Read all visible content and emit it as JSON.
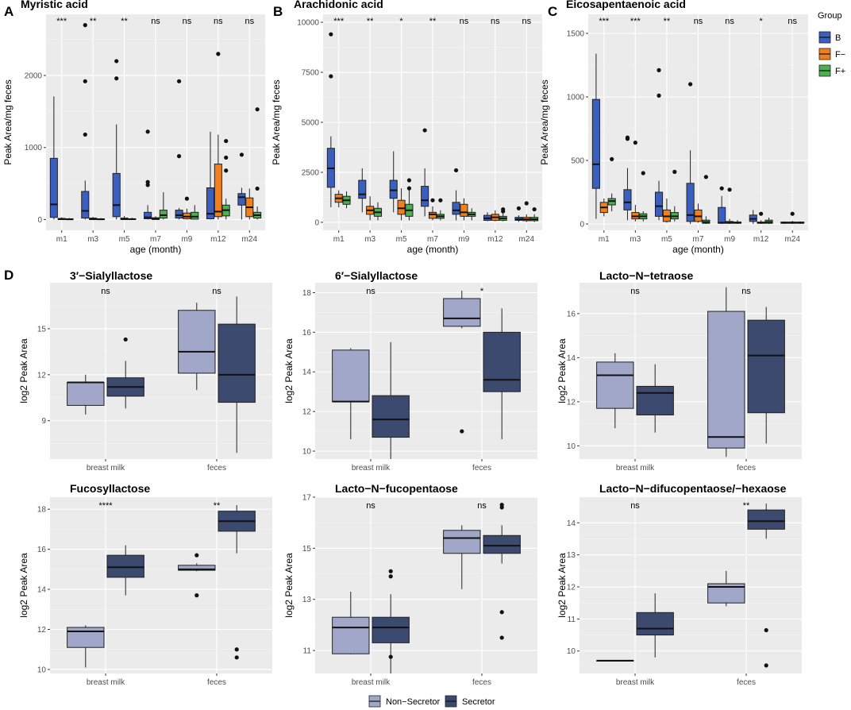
{
  "colors": {
    "panel_bg": "#ebebeb",
    "grid_major": "#ffffff",
    "B": "#3a5fbf",
    "F-": "#f07f1c",
    "F+": "#4caf50",
    "Non-Secretor": "#a0a7c8",
    "Secretor": "#3d4a70"
  },
  "legend_top": {
    "title": "Group",
    "items": [
      "B",
      "F−",
      "F+"
    ]
  },
  "legend_bottom": {
    "items": [
      "Non−Secretor",
      "Secretor"
    ]
  },
  "chart_data": [
    {
      "type": "boxplot",
      "panel": "A",
      "title": "Myristic acid",
      "xlabel": "age (month)",
      "ylabel": "Peak Area/mg feces",
      "ylim": [
        -150,
        2850
      ],
      "yticks": [
        0,
        1000,
        2000
      ],
      "categories": [
        "m1",
        "m3",
        "m5",
        "m7",
        "m9",
        "m12",
        "m24"
      ],
      "groups": [
        "B",
        "F-",
        "F+"
      ],
      "significance": [
        "***",
        "**",
        "**",
        "ns",
        "ns",
        "ns",
        "ns"
      ],
      "boxes": [
        [
          [
            0,
            30,
            210,
            850,
            1710,
            []
          ],
          [
            0,
            0,
            5,
            15,
            30,
            []
          ],
          [
            0,
            0,
            3,
            10,
            20,
            []
          ]
        ],
        [
          [
            0,
            20,
            120,
            390,
            540,
            [
              1180,
              1920,
              2700
            ]
          ],
          [
            0,
            0,
            5,
            20,
            35,
            []
          ],
          [
            0,
            0,
            3,
            10,
            20,
            []
          ]
        ],
        [
          [
            0,
            40,
            200,
            640,
            1320,
            [
              1960,
              2200
            ]
          ],
          [
            0,
            0,
            5,
            20,
            50,
            []
          ],
          [
            0,
            0,
            5,
            10,
            25,
            []
          ]
        ],
        [
          [
            0,
            10,
            30,
            100,
            200,
            [
              480,
              520,
              1220
            ]
          ],
          [
            0,
            0,
            10,
            25,
            45,
            []
          ],
          [
            0,
            20,
            60,
            130,
            380,
            []
          ]
        ],
        [
          [
            0,
            20,
            60,
            130,
            160,
            [
              880,
              1920
            ]
          ],
          [
            0,
            10,
            40,
            90,
            150,
            [
              290
            ]
          ],
          [
            0,
            5,
            40,
            100,
            200,
            []
          ]
        ],
        [
          [
            0,
            10,
            80,
            440,
            1220,
            []
          ],
          [
            0,
            40,
            110,
            770,
            1180,
            [
              2300
            ]
          ],
          [
            0,
            50,
            130,
            200,
            290,
            [
              680,
              860,
              1090
            ]
          ]
        ],
        [
          [
            0,
            200,
            310,
            360,
            440,
            [
              900
            ]
          ],
          [
            0,
            40,
            170,
            300,
            430,
            []
          ],
          [
            0,
            20,
            60,
            100,
            180,
            [
              430,
              1530
            ]
          ]
        ]
      ]
    },
    {
      "type": "boxplot",
      "panel": "B",
      "title": "Arachidonic acid",
      "xlabel": "age (month)",
      "ylabel": "Peak Area/mg feces",
      "ylim": [
        -400,
        10400
      ],
      "yticks": [
        0,
        2500,
        5000,
        7500,
        10000
      ],
      "categories": [
        "m1",
        "m3",
        "m5",
        "m7",
        "m9",
        "m12",
        "m24"
      ],
      "groups": [
        "B",
        "F-",
        "F+"
      ],
      "significance": [
        "***",
        "**",
        "*",
        "**",
        "ns",
        "ns",
        "ns"
      ],
      "boxes": [
        [
          [
            750,
            1750,
            2700,
            3700,
            4300,
            [
              7300,
              9400
            ]
          ],
          [
            750,
            1000,
            1200,
            1400,
            1600,
            []
          ],
          [
            700,
            900,
            1100,
            1300,
            1550,
            []
          ]
        ],
        [
          [
            500,
            1200,
            1400,
            2100,
            2700,
            []
          ],
          [
            100,
            400,
            600,
            800,
            1300,
            []
          ],
          [
            100,
            300,
            500,
            700,
            1000,
            []
          ]
        ],
        [
          [
            500,
            1200,
            1600,
            2100,
            3550,
            []
          ],
          [
            100,
            400,
            700,
            1100,
            1700,
            []
          ],
          [
            100,
            300,
            600,
            900,
            1600,
            [
              1700,
              2100
            ]
          ]
        ],
        [
          [
            300,
            800,
            1100,
            1800,
            2700,
            [
              4600
            ]
          ],
          [
            100,
            200,
            400,
            500,
            800,
            [
              1100
            ]
          ],
          [
            100,
            200,
            300,
            400,
            600,
            [
              1100
            ]
          ]
        ],
        [
          [
            100,
            400,
            600,
            1000,
            1600,
            [
              2600
            ]
          ],
          [
            100,
            300,
            500,
            900,
            1200,
            []
          ],
          [
            100,
            300,
            400,
            500,
            700,
            []
          ]
        ],
        [
          [
            50,
            100,
            200,
            350,
            500,
            []
          ],
          [
            50,
            100,
            250,
            400,
            600,
            []
          ],
          [
            50,
            100,
            200,
            300,
            450,
            [
              550,
              650
            ]
          ]
        ],
        [
          [
            20,
            100,
            150,
            250,
            350,
            [
              700
            ]
          ],
          [
            20,
            80,
            150,
            250,
            400,
            [
              950
            ]
          ],
          [
            20,
            80,
            150,
            250,
            400,
            [
              650
            ]
          ]
        ]
      ]
    },
    {
      "type": "boxplot",
      "panel": "C",
      "title": "Eicosapentaenoic acid",
      "xlabel": "age (month)",
      "ylabel": "Peak Area/mg feces",
      "ylim": [
        -50,
        1650
      ],
      "yticks": [
        0,
        500,
        1000,
        1500
      ],
      "categories": [
        "m1",
        "m3",
        "m5",
        "m7",
        "m9",
        "m12",
        "m24"
      ],
      "groups": [
        "B",
        "F-",
        "F+"
      ],
      "significance": [
        "***",
        "***",
        "**",
        "ns",
        "ns",
        "*",
        "ns"
      ],
      "boxes": [
        [
          [
            40,
            280,
            470,
            980,
            1340,
            []
          ],
          [
            60,
            90,
            130,
            170,
            200,
            []
          ],
          [
            100,
            150,
            180,
            200,
            240,
            [
              510
            ]
          ]
        ],
        [
          [
            30,
            110,
            170,
            270,
            440,
            [
              670,
              680
            ]
          ],
          [
            20,
            40,
            60,
            90,
            150,
            [
              640
            ]
          ],
          [
            20,
            40,
            60,
            80,
            100,
            [
              400
            ]
          ]
        ],
        [
          [
            30,
            60,
            140,
            250,
            340,
            [
              1010,
              1210
            ]
          ],
          [
            10,
            20,
            60,
            110,
            200,
            []
          ],
          [
            20,
            40,
            60,
            90,
            140,
            [
              410
            ]
          ]
        ],
        [
          [
            0,
            20,
            70,
            320,
            580,
            [
              1100
            ]
          ],
          [
            10,
            20,
            60,
            110,
            160,
            []
          ],
          [
            0,
            5,
            15,
            30,
            60,
            [
              370
            ]
          ]
        ],
        [
          [
            0,
            5,
            10,
            130,
            220,
            [
              280
            ]
          ],
          [
            0,
            5,
            10,
            20,
            40,
            [
              270
            ]
          ],
          [
            0,
            5,
            10,
            15,
            30,
            []
          ]
        ],
        [
          [
            0,
            20,
            40,
            70,
            110,
            []
          ],
          [
            0,
            5,
            10,
            15,
            30,
            [
              80
            ]
          ],
          [
            0,
            5,
            15,
            30,
            50,
            []
          ]
        ],
        [
          [
            0,
            5,
            10,
            15,
            20,
            []
          ],
          [
            0,
            5,
            10,
            15,
            25,
            [
              80
            ]
          ],
          [
            0,
            5,
            10,
            15,
            20,
            []
          ]
        ]
      ]
    },
    {
      "type": "boxplot",
      "panel": "D",
      "title": "3′−Sialyllactose",
      "ylabel": "log2 Peak Area",
      "ylim": [
        6.5,
        18.0
      ],
      "yticks": [
        9,
        12,
        15
      ],
      "categories": [
        "breast milk",
        "feces"
      ],
      "groups": [
        "Non-Secretor",
        "Secretor"
      ],
      "significance": [
        "ns",
        "ns"
      ],
      "boxes": [
        [
          [
            9.4,
            10.0,
            11.5,
            11.5,
            12.0,
            []
          ],
          [
            9.8,
            10.6,
            11.2,
            11.8,
            12.9,
            [
              14.3
            ]
          ]
        ],
        [
          [
            11.0,
            12.1,
            13.5,
            16.2,
            16.7,
            []
          ],
          [
            6.9,
            10.2,
            12.0,
            15.3,
            17.1,
            []
          ]
        ]
      ]
    },
    {
      "type": "boxplot",
      "panel": "",
      "title": "6′−Sialyllactose",
      "ylabel": "log2 Peak Area",
      "ylim": [
        9.6,
        18.5
      ],
      "yticks": [
        10,
        12,
        14,
        16,
        18
      ],
      "categories": [
        "breast milk",
        "feces"
      ],
      "groups": [
        "Non-Secretor",
        "Secretor"
      ],
      "significance": [
        "ns",
        "*"
      ],
      "boxes": [
        [
          [
            10.6,
            12.5,
            12.5,
            15.1,
            15.2,
            []
          ],
          [
            9.6,
            10.7,
            11.6,
            12.8,
            15.5,
            []
          ]
        ],
        [
          [
            16.2,
            16.3,
            16.7,
            17.7,
            18.1,
            [
              11.0
            ]
          ],
          [
            10.6,
            13.0,
            13.6,
            16.0,
            17.2,
            []
          ]
        ]
      ]
    },
    {
      "type": "boxplot",
      "panel": "",
      "title": "Lacto−N−tetraose",
      "ylabel": "log2 Peak Area",
      "ylim": [
        9.4,
        17.4
      ],
      "yticks": [
        10,
        12,
        14,
        16
      ],
      "categories": [
        "breast milk",
        "feces"
      ],
      "groups": [
        "Non-Secretor",
        "Secretor"
      ],
      "significance": [
        "ns",
        "ns"
      ],
      "boxes": [
        [
          [
            10.8,
            11.7,
            13.2,
            13.8,
            14.2,
            []
          ],
          [
            10.6,
            11.4,
            12.4,
            12.7,
            13.7,
            []
          ]
        ],
        [
          [
            9.5,
            9.9,
            10.4,
            16.1,
            17.2,
            []
          ],
          [
            10.1,
            11.5,
            14.1,
            15.7,
            16.3,
            []
          ]
        ]
      ]
    },
    {
      "type": "boxplot",
      "panel": "",
      "title": "Fucosyllactose",
      "ylabel": "log2 Peak Area",
      "ylim": [
        9.8,
        18.6
      ],
      "yticks": [
        10,
        12,
        14,
        16,
        18
      ],
      "categories": [
        "breast milk",
        "feces"
      ],
      "groups": [
        "Non-Secretor",
        "Secretor"
      ],
      "significance": [
        "****",
        "**"
      ],
      "boxes": [
        [
          [
            10.1,
            11.1,
            11.9,
            12.1,
            12.2,
            []
          ],
          [
            13.7,
            14.6,
            15.1,
            15.7,
            16.2,
            []
          ]
        ],
        [
          [
            14.9,
            14.95,
            15.0,
            15.2,
            15.3,
            [
              13.7,
              15.7
            ]
          ],
          [
            15.8,
            16.9,
            17.4,
            17.9,
            18.2,
            [
              10.6,
              11.0
            ]
          ]
        ]
      ]
    },
    {
      "type": "boxplot",
      "panel": "",
      "title": "Lacto−N−fucopentaose",
      "ylabel": "log2 Peak Area",
      "ylim": [
        10.1,
        17.0
      ],
      "yticks": [
        11,
        13,
        15,
        17
      ],
      "categories": [
        "breast milk",
        "feces"
      ],
      "groups": [
        "Non-Secretor",
        "Secretor"
      ],
      "significance": [
        "ns",
        "ns"
      ],
      "boxes": [
        [
          [
            10.85,
            10.87,
            11.9,
            12.3,
            13.3,
            []
          ],
          [
            10.1,
            11.3,
            11.9,
            12.3,
            13.2,
            [
              10.75,
              13.9,
              14.1
            ]
          ]
        ],
        [
          [
            13.4,
            14.8,
            15.4,
            15.7,
            15.9,
            []
          ],
          [
            14.4,
            14.8,
            15.1,
            15.5,
            15.9,
            [
              11.5,
              12.5,
              16.6,
              16.7
            ]
          ]
        ]
      ]
    },
    {
      "type": "boxplot",
      "panel": "",
      "title": "Lacto−N−difucopentaose/−hexaose",
      "ylabel": "log2 Peak Area",
      "ylim": [
        9.3,
        14.8
      ],
      "yticks": [
        10,
        11,
        12,
        13,
        14
      ],
      "categories": [
        "breast milk",
        "feces"
      ],
      "groups": [
        "Non-Secretor",
        "Secretor"
      ],
      "significance": [
        "ns",
        "**"
      ],
      "boxes": [
        [
          [
            9.7,
            9.7,
            9.7,
            9.7,
            9.7,
            []
          ],
          [
            9.8,
            10.5,
            10.7,
            11.2,
            11.8,
            []
          ]
        ],
        [
          [
            11.4,
            11.5,
            12.0,
            12.1,
            12.5,
            []
          ],
          [
            13.5,
            13.8,
            14.05,
            14.4,
            14.6,
            [
              9.55,
              10.65
            ]
          ]
        ]
      ]
    }
  ]
}
